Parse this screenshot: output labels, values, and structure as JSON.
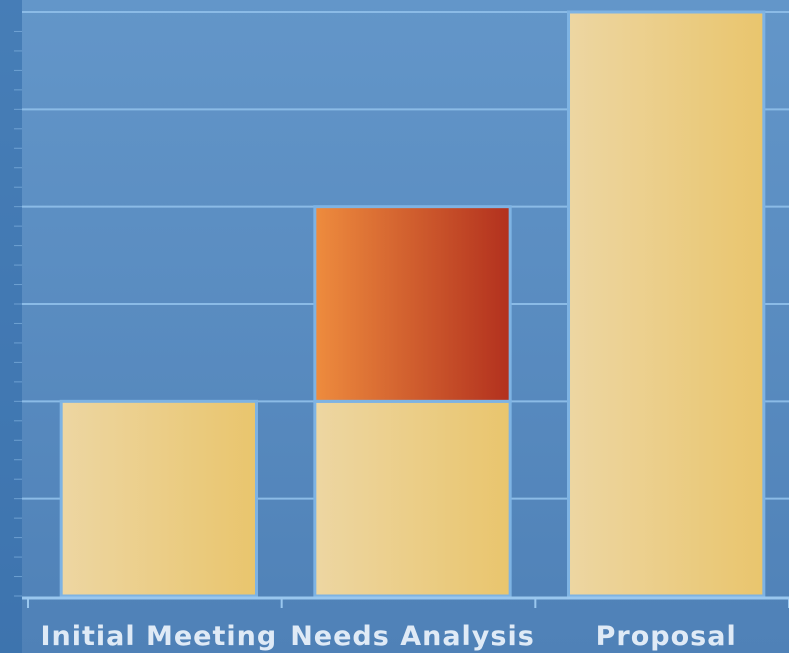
{
  "chart_data": {
    "type": "bar",
    "stacked": true,
    "categories": [
      "Initial Meeting",
      "Needs Analysis",
      "Proposal"
    ],
    "series": [
      {
        "values": [
          2,
          2,
          6
        ],
        "color": "#e9c56d",
        "color_light": "#edd6a2"
      },
      {
        "values": [
          0,
          2,
          0
        ],
        "color": "#b2301e",
        "color_light": "#ee8c3e"
      }
    ],
    "ylim": [
      0,
      6
    ],
    "grid": true,
    "title": "",
    "xlabel": "",
    "ylabel": "",
    "colors": {
      "plot_bg_top": "#6396c9",
      "plot_bg_bottom": "#4f81b7",
      "gridline": "#8bbbe6",
      "axis": "#9ac7ee",
      "tick_label": "#dfeaf6"
    }
  }
}
